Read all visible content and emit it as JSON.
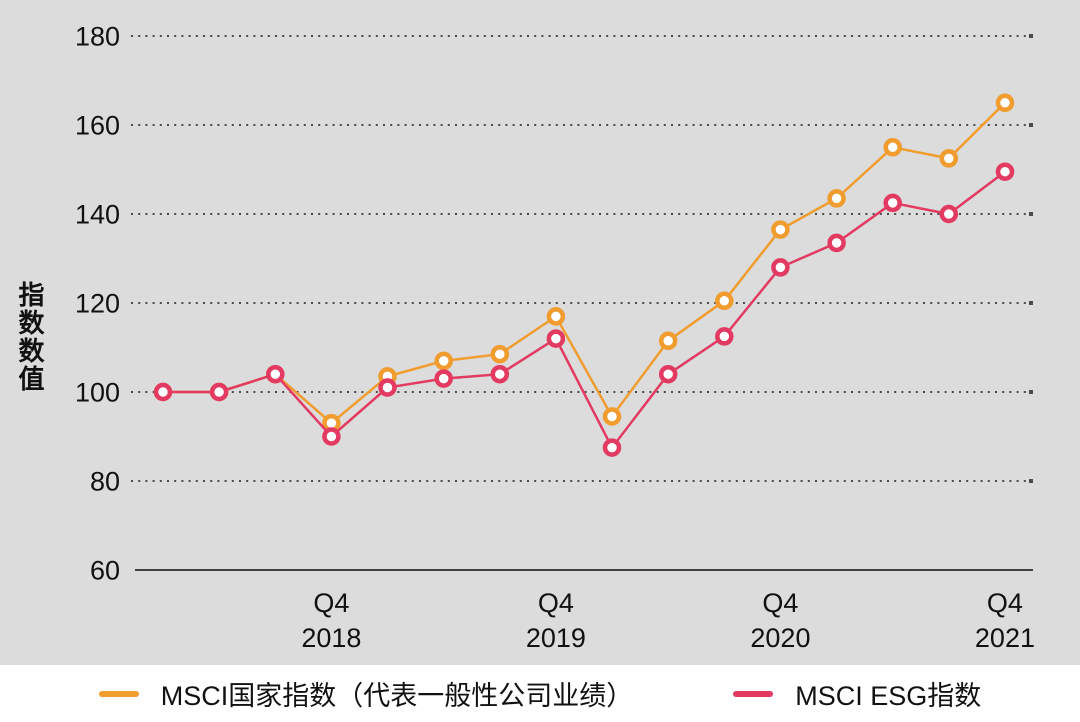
{
  "colors": {
    "panel_background": "#dcdcdc",
    "page_background": "#ffffff",
    "grid_dots": "#4a4a4a",
    "axis_line": "#3f3f3f",
    "text": "#111111",
    "series_country": "#f09c2e",
    "series_esg": "#e23a61"
  },
  "y_axis": {
    "title": "指数数值",
    "ticks": [
      60,
      80,
      100,
      120,
      140,
      160,
      180
    ]
  },
  "x_axis": {
    "tick_labels": [
      {
        "index": 3,
        "line1": "Q4",
        "line2": "2018"
      },
      {
        "index": 7,
        "line1": "Q4",
        "line2": "2019"
      },
      {
        "index": 11,
        "line1": "Q4",
        "line2": "2020"
      },
      {
        "index": 15,
        "line1": "Q4",
        "line2": "2021"
      }
    ]
  },
  "legend": {
    "items": [
      {
        "label": "MSCI国家指数（代表一般性公司业绩）",
        "color": "#f09c2e"
      },
      {
        "label": "MSCI ESG指数",
        "color": "#e23a61"
      }
    ]
  },
  "chart_data": {
    "type": "line",
    "x": [
      "Q1 2018",
      "Q2 2018",
      "Q3 2018",
      "Q4 2018",
      "Q1 2019",
      "Q2 2019",
      "Q3 2019",
      "Q4 2019",
      "Q1 2020",
      "Q2 2020",
      "Q3 2020",
      "Q4 2020",
      "Q1 2021",
      "Q2 2021",
      "Q3 2021",
      "Q4 2021"
    ],
    "series": [
      {
        "name": "MSCI国家指数（代表一般性公司业绩）",
        "color": "#f09c2e",
        "values": [
          100,
          100,
          104,
          93,
          103.5,
          107,
          108.5,
          117,
          94.5,
          111.5,
          120.5,
          136.5,
          143.5,
          155,
          152.5,
          165
        ]
      },
      {
        "name": "MSCI ESG指数",
        "color": "#e23a61",
        "values": [
          100,
          100,
          104,
          90,
          101,
          103,
          104,
          112,
          87.5,
          104,
          112.5,
          128,
          133.5,
          142.5,
          140,
          149.5
        ]
      }
    ],
    "title": "",
    "xlabel": "",
    "ylabel": "指数数值",
    "ylim": [
      60,
      180
    ],
    "grid": "horizontal-dotted",
    "legend_position": "bottom"
  }
}
